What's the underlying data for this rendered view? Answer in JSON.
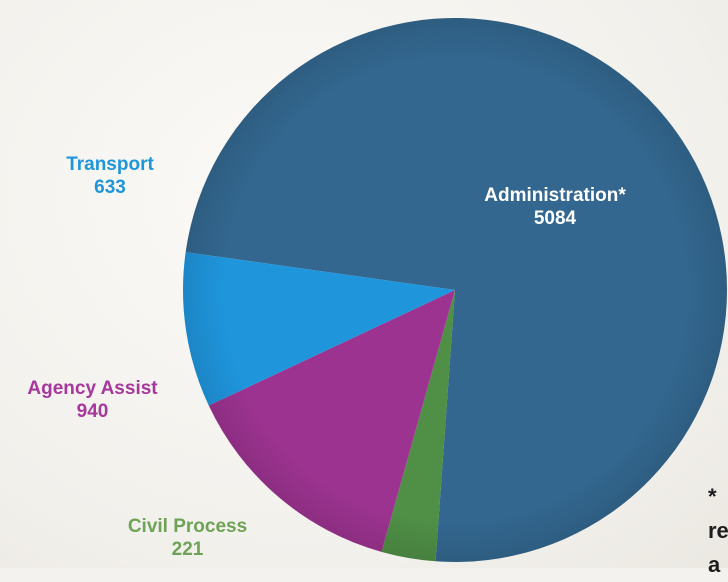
{
  "chart_data": {
    "type": "pie",
    "slices": [
      {
        "label": "Administration*",
        "value": 5084,
        "color": "#33678f"
      },
      {
        "label": "Civil Process",
        "value": 221,
        "color": "#4f8f46"
      },
      {
        "label": "Agency Assist",
        "value": 940,
        "color": "#9c3390"
      },
      {
        "label": "Transport",
        "value": 633,
        "color": "#1f95dc"
      }
    ],
    "label_colors": {
      "Administration*": "#ffffff",
      "Civil Process": "#6ea357",
      "Agency Assist": "#a8379d",
      "Transport": "#1f95dc"
    }
  },
  "footnote": {
    "line1": "*",
    "line2": "re",
    "line3": "a"
  }
}
